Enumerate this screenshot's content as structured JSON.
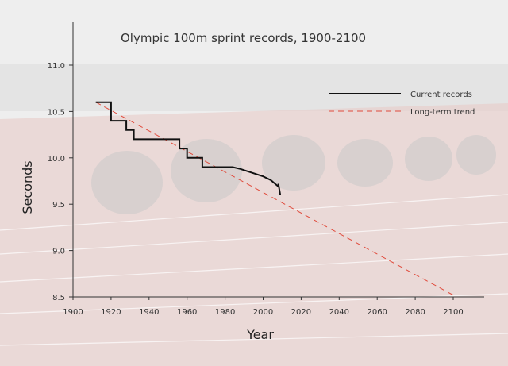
{
  "chart_data": {
    "type": "line",
    "title": "Olympic 100m sprint records, 1900-2100",
    "xlabel": "Year",
    "ylabel": "Seconds",
    "xlim": [
      1900,
      2115
    ],
    "ylim": [
      8.5,
      11.5
    ],
    "x_ticks": [
      1900,
      1920,
      1940,
      1960,
      1980,
      2000,
      2020,
      2040,
      2060,
      2080,
      2100
    ],
    "y_ticks": [
      8.5,
      9.0,
      9.5,
      10.0,
      10.5,
      11.0
    ],
    "x_tick_labels": [
      "1900",
      "1920",
      "1940",
      "1960",
      "1980",
      "2000",
      "2020",
      "2040",
      "2060",
      "2080",
      "2100"
    ],
    "y_tick_labels": [
      "8.5",
      "9.0",
      "9.5",
      "10.0",
      "10.5",
      "11.0"
    ],
    "legend_position": "top-right",
    "series": [
      {
        "name": "Current records",
        "color": "#111111",
        "style": "solid",
        "points": [
          [
            1912,
            10.6
          ],
          [
            1920,
            10.6
          ],
          [
            1920,
            10.4
          ],
          [
            1928,
            10.4
          ],
          [
            1928,
            10.3
          ],
          [
            1932,
            10.3
          ],
          [
            1932,
            10.2
          ],
          [
            1952,
            10.2
          ],
          [
            1956,
            10.2
          ],
          [
            1956,
            10.1
          ],
          [
            1960,
            10.1
          ],
          [
            1960,
            10.0
          ],
          [
            1968,
            10.0
          ],
          [
            1968,
            9.9
          ],
          [
            1984,
            9.9
          ],
          [
            1988,
            9.88
          ],
          [
            2000,
            9.8
          ],
          [
            2004,
            9.76
          ],
          [
            2008,
            9.69
          ],
          [
            2008,
            9.72
          ],
          [
            2009,
            9.6
          ]
        ]
      },
      {
        "name": "Long-term trend",
        "color": "#e04b3c",
        "style": "dashed",
        "points": [
          [
            1912,
            10.6
          ],
          [
            2100,
            8.52
          ]
        ]
      }
    ]
  }
}
